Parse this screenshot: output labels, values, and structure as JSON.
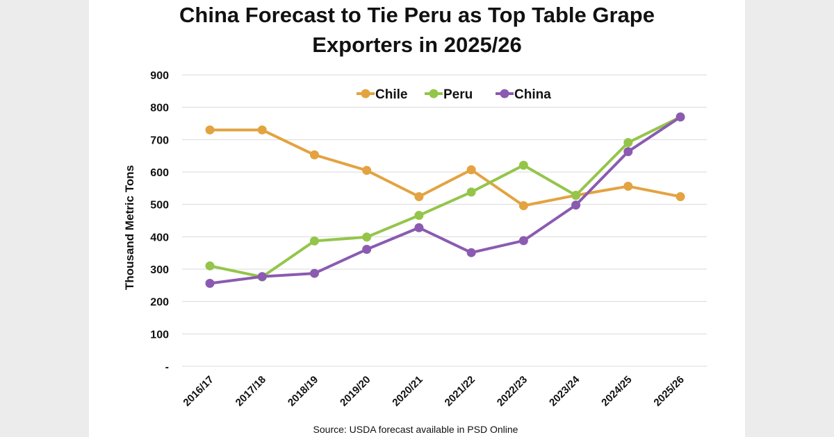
{
  "chart_data": {
    "type": "line",
    "title_line1": "China Forecast to Tie Peru as Top Table Grape",
    "title_line2": "Exporters in 2025/26",
    "ylabel": "Thousand Metric Tons",
    "xlabel": "",
    "source": "Source: USDA forecast available in PSD Online",
    "categories": [
      "2016/17",
      "2017/18",
      "2018/19",
      "2019/20",
      "2020/21",
      "2021/22",
      "2022/23",
      "2023/24",
      "2024/25",
      "2025/26"
    ],
    "ylim": [
      0,
      900
    ],
    "yticks": [
      {
        "value": 0,
        "label": "-"
      },
      {
        "value": 100,
        "label": "100"
      },
      {
        "value": 200,
        "label": "200"
      },
      {
        "value": 300,
        "label": "300"
      },
      {
        "value": 400,
        "label": "400"
      },
      {
        "value": 500,
        "label": "500"
      },
      {
        "value": 600,
        "label": "600"
      },
      {
        "value": 700,
        "label": "700"
      },
      {
        "value": 800,
        "label": "800"
      },
      {
        "value": 900,
        "label": "900"
      }
    ],
    "grid": true,
    "legend_position": "top-center",
    "series": [
      {
        "name": "Chile",
        "color": "#e3a341",
        "values": [
          730,
          730,
          653,
          605,
          524,
          607,
          496,
          528,
          556,
          524
        ]
      },
      {
        "name": "Peru",
        "color": "#94c54a",
        "values": [
          310,
          276,
          387,
          399,
          466,
          538,
          621,
          528,
          691,
          770
        ]
      },
      {
        "name": "China",
        "color": "#8a5bb0",
        "values": [
          256,
          277,
          287,
          361,
          428,
          351,
          388,
          498,
          663,
          770
        ]
      }
    ]
  }
}
